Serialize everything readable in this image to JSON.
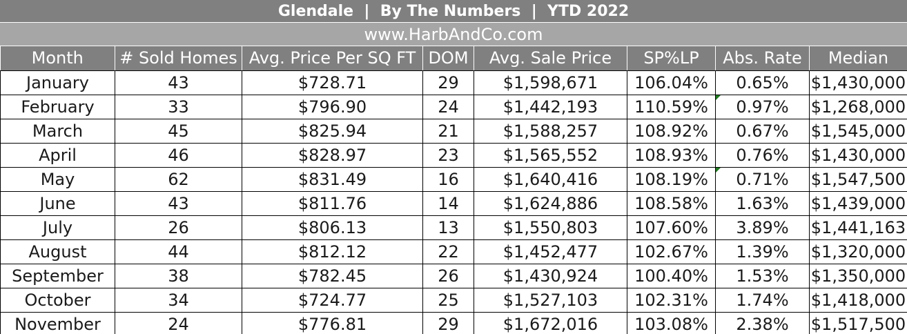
{
  "title": "Glendale  |  By The Numbers  |  YTD 2022",
  "subtitle": "www.HarbAndCo.com",
  "colors": {
    "header_bg": "#808080",
    "subtitle_bg": "#a6a6a6",
    "header_text": "#ffffff",
    "cell_text": "#1a1a1a",
    "comment_marker": "#1f7a1f"
  },
  "columns": [
    "Month",
    "# Sold Homes",
    "Avg. Price Per SQ FT",
    "DOM",
    "Avg. Sale Price",
    "SP%LP",
    "Abs. Rate",
    "Median"
  ],
  "rows": [
    [
      "January",
      "43",
      "$728.71",
      "29",
      "$1,598,671",
      "106.04%",
      "0.65%",
      "$1,430,000"
    ],
    [
      "February",
      "33",
      "$796.90",
      "24",
      "$1,442,193",
      "110.59%",
      "0.97%",
      "$1,268,000"
    ],
    [
      "March",
      "45",
      "$825.94",
      "21",
      "$1,588,257",
      "108.92%",
      "0.67%",
      "$1,545,000"
    ],
    [
      "April",
      "46",
      "$828.97",
      "23",
      "$1,565,552",
      "108.93%",
      "0.76%",
      "$1,430,000"
    ],
    [
      "May",
      "62",
      "$831.49",
      "16",
      "$1,640,416",
      "108.19%",
      "0.71%",
      "$1,547,500"
    ],
    [
      "June",
      "43",
      "$811.76",
      "14",
      "$1,624,886",
      "108.58%",
      "1.63%",
      "$1,439,000"
    ],
    [
      "July",
      "26",
      "$806.13",
      "13",
      "$1,550,803",
      "107.60%",
      "3.89%",
      "$1,441,163"
    ],
    [
      "August",
      "44",
      "$812.12",
      "22",
      "$1,452,477",
      "102.67%",
      "1.39%",
      "$1,320,000"
    ],
    [
      "September",
      "38",
      "$782.45",
      "26",
      "$1,430,924",
      "100.40%",
      "1.53%",
      "$1,350,000"
    ],
    [
      "October",
      "34",
      "$724.77",
      "25",
      "$1,527,103",
      "102.31%",
      "1.74%",
      "$1,418,000"
    ],
    [
      "November",
      "24",
      "$776.81",
      "29",
      "$1,672,016",
      "103.08%",
      "2.38%",
      "$1,517,500"
    ]
  ]
}
